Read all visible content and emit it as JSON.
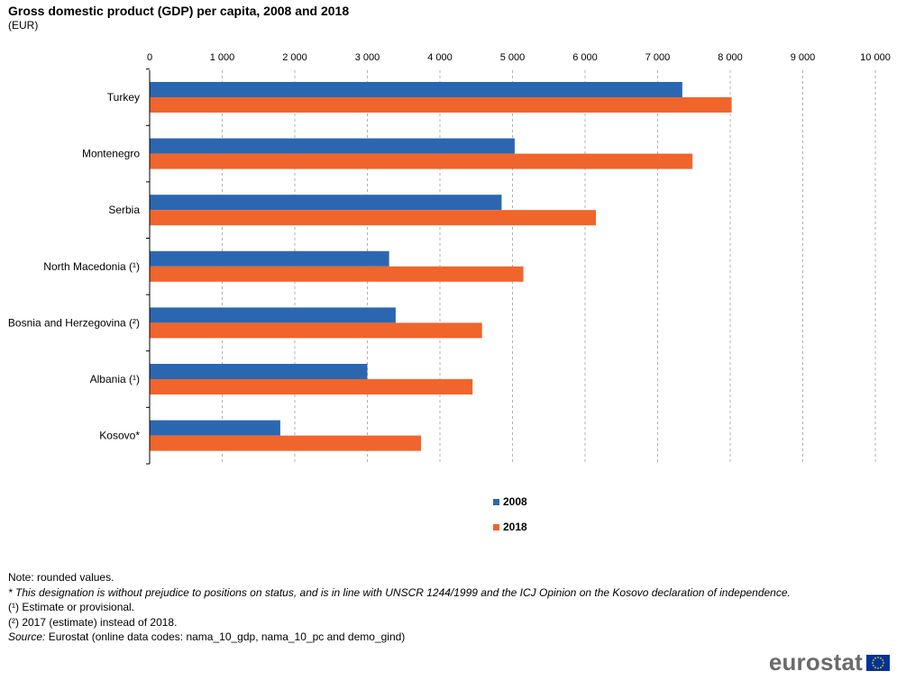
{
  "title": "Gross domestic product (GDP) per capita, 2008 and 2018",
  "subtitle": "(EUR)",
  "chart_data": {
    "type": "bar",
    "orientation": "horizontal",
    "categories": [
      "Turkey",
      "Montenegro",
      "Serbia",
      "North Macedonia (¹)",
      "Bosnia and Herzegovina (²)",
      "Albania (¹)",
      "Kosovo*"
    ],
    "series": [
      {
        "name": "2008",
        "color": "#2b67b1",
        "values": [
          7340,
          5030,
          4850,
          3300,
          3390,
          3000,
          1800
        ]
      },
      {
        "name": "2018",
        "color": "#f0652b",
        "values": [
          8020,
          7480,
          6150,
          5150,
          4580,
          4450,
          3740
        ]
      }
    ],
    "xlim": [
      0,
      10000
    ],
    "xticks": [
      0,
      1000,
      2000,
      3000,
      4000,
      5000,
      6000,
      7000,
      8000,
      9000,
      10000
    ],
    "xtick_labels": [
      "0",
      "1 000",
      "2 000",
      "3 000",
      "4 000",
      "5 000",
      "6 000",
      "7 000",
      "8 000",
      "9 000",
      "10 000"
    ],
    "axis_position": "top",
    "grid": "vertical dashed",
    "legend_placement": "bottom-center"
  },
  "notes": {
    "line1": "Note: rounded values.",
    "line2": "* This designation is without prejudice to positions on status, and is in line with UNSCR 1244/1999 and the ICJ Opinion on the Kosovo declaration of independence.",
    "line3": "(¹) Estimate or provisional.",
    "line4": "(²) 2017 (estimate) instead of 2018.",
    "source_label": "Source:",
    "source_text": " Eurostat (online data codes: nama_10_gdp, nama_10_pc and demo_gind)"
  },
  "logo": {
    "text": "eurostat",
    "flag_color": "#003399"
  }
}
